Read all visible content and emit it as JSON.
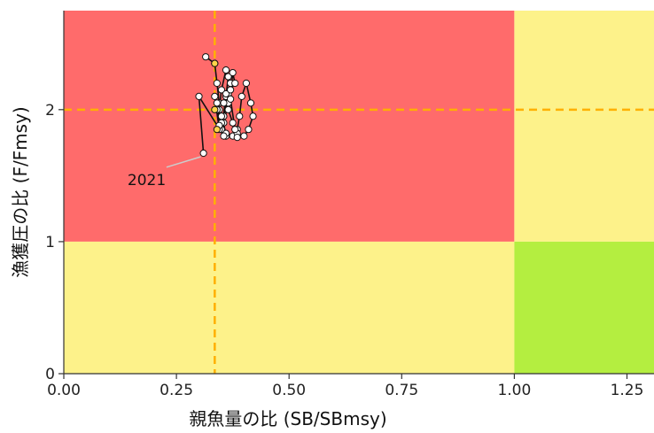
{
  "chart_data": {
    "type": "scatter",
    "title": "",
    "xlabel": "親魚量の比 (SB/SBmsy)",
    "ylabel": "漁獲圧の比 (F/Fmsy)",
    "xlim": [
      0,
      1.31
    ],
    "ylim": [
      0,
      2.75
    ],
    "x_ticks": [
      0.0,
      0.25,
      0.5,
      0.75,
      1.0,
      1.25
    ],
    "x_tick_labels": [
      "0.00",
      "0.25",
      "0.50",
      "0.75",
      "1.00",
      "1.25"
    ],
    "y_ticks": [
      0,
      1,
      2
    ],
    "y_tick_labels": [
      "0",
      "1",
      "2"
    ],
    "grid": false,
    "zones": [
      {
        "x": [
          0,
          1.0
        ],
        "y": [
          1.0,
          2.75
        ],
        "color": "#ff6b6b"
      },
      {
        "x": [
          1.0,
          1.31
        ],
        "y": [
          1.0,
          2.75
        ],
        "color": "#fdf28a"
      },
      {
        "x": [
          0,
          1.0
        ],
        "y": [
          0,
          1.0
        ],
        "color": "#fdf28a"
      },
      {
        "x": [
          1.0,
          1.31
        ],
        "y": [
          0,
          1.0
        ],
        "color": "#b4ee40"
      }
    ],
    "reference_lines": {
      "vertical_x": 0.335,
      "horizontal_y": 2.0,
      "color": "#ffb000",
      "style": "dashed"
    },
    "series": [
      {
        "x": [
          0.315,
          0.335,
          0.34,
          0.345,
          0.35,
          0.36,
          0.365,
          0.36,
          0.35,
          0.345,
          0.355,
          0.365,
          0.37,
          0.365,
          0.355,
          0.345,
          0.335,
          0.34,
          0.35,
          0.36,
          0.375,
          0.385,
          0.39,
          0.395,
          0.405,
          0.415,
          0.42,
          0.41,
          0.4,
          0.385,
          0.375,
          0.365,
          0.36,
          0.355,
          0.37,
          0.38,
          0.375,
          0.37,
          0.38,
          0.385,
          0.36,
          0.35,
          0.34,
          0.345,
          0.355,
          0.3,
          0.31
        ],
        "y": [
          2.4,
          2.35,
          2.2,
          2.05,
          1.85,
          2.1,
          2.25,
          2.3,
          2.15,
          2.0,
          1.9,
          2.05,
          2.2,
          2.12,
          1.95,
          1.85,
          2.1,
          2.0,
          1.9,
          1.8,
          1.8,
          1.85,
          1.95,
          2.1,
          2.2,
          2.05,
          1.95,
          1.85,
          1.8,
          1.82,
          1.9,
          2.0,
          2.12,
          2.05,
          2.15,
          2.2,
          2.28,
          2.08,
          1.85,
          1.79,
          1.82,
          1.95,
          2.05,
          1.88,
          1.8,
          2.1,
          1.67
        ],
        "point_color": "#ffffff",
        "highlight_points": [
          {
            "x": 0.335,
            "y": 2.35,
            "color": "#ffd54a"
          },
          {
            "x": 0.335,
            "y": 2.0,
            "color": "#ffd54a"
          },
          {
            "x": 0.34,
            "y": 1.85,
            "color": "#ffd54a"
          }
        ]
      }
    ],
    "annotations": [
      {
        "label": "2021",
        "point_x": 0.31,
        "point_y": 1.67,
        "label_x": 0.165,
        "label_y": 1.47
      }
    ]
  }
}
